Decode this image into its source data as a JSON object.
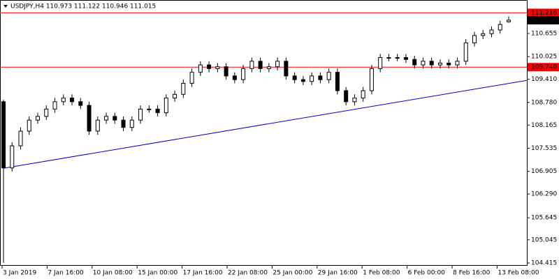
{
  "chart_data": {
    "type": "candlestick",
    "title": "USDJPY,H4  110.973 111.122 110.946 111.015",
    "open": [
      108.8,
      107.0,
      107.6,
      108.0,
      108.3,
      108.4,
      108.6,
      108.8,
      108.9,
      108.8,
      108.7,
      108.0,
      108.3,
      108.4,
      108.3,
      108.1,
      108.3,
      108.6,
      108.6,
      108.5,
      108.9,
      109.0,
      109.3,
      109.6,
      109.8,
      109.7,
      109.75,
      109.5,
      109.4,
      109.7,
      109.9,
      109.7,
      109.75,
      109.9,
      109.5,
      109.4,
      109.35,
      109.5,
      109.4,
      109.6,
      109.1,
      108.8,
      108.9,
      109.1,
      109.7,
      110.0,
      110.0,
      110.0,
      109.95,
      109.8,
      109.9,
      109.8,
      109.85,
      109.8,
      109.9,
      110.4,
      110.6,
      110.65,
      110.75,
      110.973
    ],
    "high": [
      108.85,
      107.7,
      108.1,
      108.4,
      108.5,
      108.7,
      108.9,
      109.0,
      109.0,
      108.9,
      108.8,
      108.4,
      108.5,
      108.5,
      108.4,
      108.4,
      108.7,
      108.7,
      108.7,
      109.0,
      109.1,
      109.4,
      109.7,
      109.9,
      109.9,
      109.85,
      109.85,
      109.6,
      109.8,
      110.0,
      110.0,
      109.85,
      110.0,
      110.0,
      109.6,
      109.5,
      109.6,
      109.6,
      109.7,
      109.7,
      109.2,
      109.0,
      109.2,
      109.8,
      110.1,
      110.1,
      110.1,
      110.1,
      110.05,
      110.0,
      110.0,
      109.95,
      109.95,
      110.0,
      110.5,
      110.7,
      110.75,
      110.85,
      111.0,
      111.122
    ],
    "low": [
      104.42,
      106.9,
      107.5,
      107.9,
      108.2,
      108.3,
      108.5,
      108.7,
      108.7,
      108.6,
      107.9,
      107.9,
      108.2,
      108.2,
      108.0,
      108.0,
      108.2,
      108.5,
      108.4,
      108.4,
      108.8,
      108.9,
      109.2,
      109.5,
      109.6,
      109.6,
      109.4,
      109.3,
      109.3,
      109.6,
      109.6,
      109.6,
      109.65,
      109.4,
      109.3,
      109.25,
      109.25,
      109.3,
      109.3,
      109.0,
      108.7,
      108.7,
      108.8,
      109.0,
      109.6,
      109.9,
      109.9,
      109.85,
      109.7,
      109.7,
      109.7,
      109.7,
      109.7,
      109.7,
      109.8,
      110.3,
      110.5,
      110.55,
      110.65,
      110.946
    ],
    "close": [
      107.0,
      107.6,
      108.0,
      108.3,
      108.4,
      108.6,
      108.8,
      108.9,
      108.8,
      108.7,
      108.0,
      108.3,
      108.4,
      108.3,
      108.1,
      108.3,
      108.6,
      108.6,
      108.5,
      108.9,
      109.0,
      109.3,
      109.6,
      109.8,
      109.7,
      109.75,
      109.5,
      109.4,
      109.7,
      109.9,
      109.7,
      109.75,
      109.9,
      109.5,
      109.4,
      109.35,
      109.5,
      109.4,
      109.6,
      109.1,
      108.8,
      108.9,
      109.1,
      109.7,
      110.0,
      110.0,
      110.0,
      109.95,
      109.8,
      109.9,
      109.8,
      109.85,
      109.8,
      109.9,
      110.4,
      110.6,
      110.65,
      110.75,
      110.9,
      111.015
    ],
    "up_color": "#ffffff",
    "down_color": "#000000",
    "x_labels": [
      "3 Jan 2019",
      "7 Jan 16:00",
      "10 Jan 08:00",
      "15 Jan 00:00",
      "17 Jan 16:00",
      "22 Jan 08:00",
      "25 Jan 00:00",
      "29 Jan 16:00",
      "1 Feb 08:00",
      "6 Feb 00:00",
      "8 Feb 16:00",
      "13 Feb 08:00"
    ],
    "ylim": [
      104.34,
      111.546
    ],
    "yticks": [
      110.655,
      110.025,
      {
        "value": 109.41,
        "label": "109.410"
      },
      {
        "value": 108.78,
        "label": "108.780"
      },
      108.165,
      107.535,
      106.905,
      {
        "value": 106.29,
        "label": "106.290"
      },
      105.645,
      105.045,
      104.415
    ],
    "levels": [
      {
        "value": 111.216,
        "label": "111.216"
      },
      {
        "value": 109.74,
        "label": "109.740"
      }
    ],
    "level_color": "#ff0000",
    "bid": 111.015,
    "trendline": {
      "values": [
        106.99,
        109.38
      ],
      "color": "#0000cc"
    }
  }
}
